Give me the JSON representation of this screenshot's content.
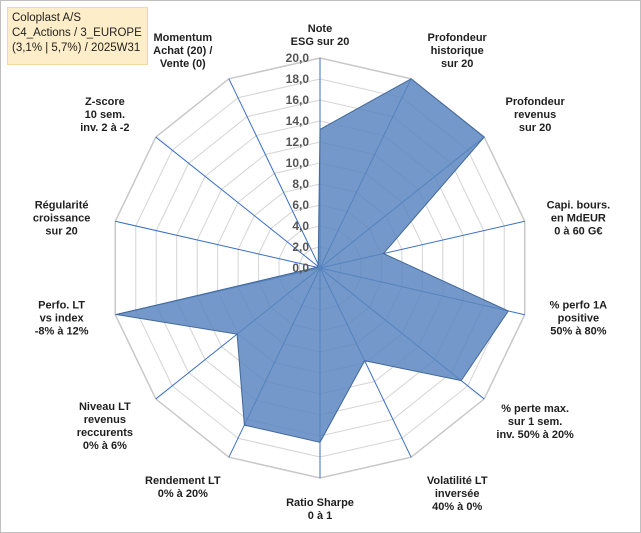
{
  "title_box": {
    "line1": "Coloplast A/S",
    "line2": "C4_Actions / 3_EUROPE",
    "line3": "(3,1% | 5,7%) / 2025W31"
  },
  "colors": {
    "fill": "#5b86bf",
    "fill_opacity": 0.85,
    "outline": "#41689b",
    "grid": "#d4d4d4",
    "spoke": "#3b6fc2",
    "tick_text": "#555555"
  },
  "chart_data": {
    "type": "radar",
    "rmin": 0,
    "rmax": 20,
    "step": 2,
    "grid": true,
    "ticks": [
      "0,0",
      "2,0",
      "4,0",
      "6,0",
      "8,0",
      "10,0",
      "12,0",
      "14,0",
      "16,0",
      "18,0",
      "20,0"
    ],
    "axes": [
      {
        "label": [
          "Note",
          "ESG sur 20"
        ],
        "value": 13.2
      },
      {
        "label": [
          "Profondeur",
          "historique",
          "sur 20"
        ],
        "value": 20.0
      },
      {
        "label": [
          "Profondeur",
          "revenus",
          "sur 20"
        ],
        "value": 20.0
      },
      {
        "label": [
          "Capi. bours.",
          "en MdEUR",
          "0 à 60 G€"
        ],
        "value": 6.2
      },
      {
        "label": [
          "% perfo 1A",
          "positive",
          "50% à 80%"
        ],
        "value": 18.4
      },
      {
        "label": [
          "% perte max.",
          "sur 1 sem.",
          "inv. 50% à 20%"
        ],
        "value": 17.2
      },
      {
        "label": [
          "Volatilité LT",
          "inversée",
          "40% à 0%"
        ],
        "value": 9.8
      },
      {
        "label": [
          "Ratio Sharpe",
          "0 à 1"
        ],
        "value": 16.6
      },
      {
        "label": [
          "Rendement LT",
          "0% à 20%"
        ],
        "value": 16.6
      },
      {
        "label": [
          "Niveau LT",
          "revenus",
          "reccurents",
          "0% à 6%"
        ],
        "value": 10.1
      },
      {
        "label": [
          "Perfo. LT",
          "vs index",
          "-8% à 12%"
        ],
        "value": 19.9
      },
      {
        "label": [
          "Régularité",
          "croissance",
          "sur 20"
        ],
        "value": 0.3
      },
      {
        "label": [
          "Z-score",
          "10 sem.",
          "inv. 2 à -2"
        ],
        "value": 0.3
      },
      {
        "label": [
          "Momentum",
          "Achat (20) /",
          "Vente (0)"
        ],
        "value": 0.4
      }
    ]
  }
}
